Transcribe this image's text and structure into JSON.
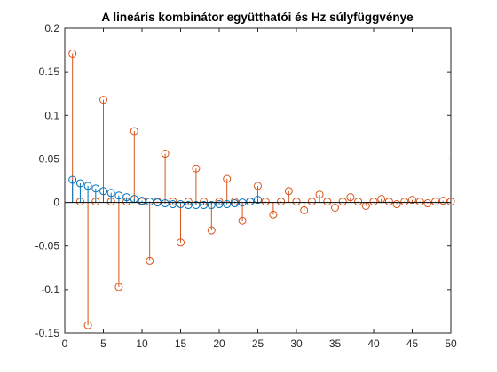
{
  "chart_data": {
    "type": "stem",
    "title": "A lineáris kombinátor együtthatói és Hz súlyfüggvénye",
    "xlabel": "",
    "ylabel": "",
    "xlim": [
      0,
      50
    ],
    "ylim": [
      -0.15,
      0.2
    ],
    "xticks": [
      0,
      5,
      10,
      15,
      20,
      25,
      30,
      35,
      40,
      45,
      50
    ],
    "yticks": [
      -0.15,
      -0.1,
      -0.05,
      0,
      0.05,
      0.1,
      0.15,
      0.2
    ],
    "xtick_labels": [
      "0",
      "5",
      "10",
      "15",
      "20",
      "25",
      "30",
      "35",
      "40",
      "45",
      "50"
    ],
    "ytick_labels": [
      "-0.15",
      "-0.1",
      "-0.05",
      "0",
      "0.05",
      "0.1",
      "0.15",
      "0.2"
    ],
    "series": [
      {
        "color": "#0072BD",
        "x": [
          1,
          2,
          3,
          4,
          5,
          6,
          7,
          8,
          9,
          10,
          11,
          12,
          13,
          14,
          15,
          16,
          17,
          18,
          19,
          20,
          21,
          22,
          23,
          24,
          25
        ],
        "values": [
          0.026,
          0.022,
          0.019,
          0.016,
          0.013,
          0.011,
          0.008,
          0.006,
          0.004,
          0.002,
          0.001,
          0.0,
          -0.001,
          -0.002,
          -0.002,
          -0.003,
          -0.003,
          -0.003,
          -0.003,
          -0.002,
          -0.002,
          -0.001,
          0.0,
          0.001,
          0.003
        ]
      },
      {
        "color": "#D95319",
        "x": [
          1,
          2,
          3,
          4,
          5,
          6,
          7,
          8,
          9,
          10,
          11,
          12,
          13,
          14,
          15,
          16,
          17,
          18,
          19,
          20,
          21,
          22,
          23,
          24,
          25,
          26,
          27,
          28,
          29,
          30,
          31,
          32,
          33,
          34,
          35,
          36,
          37,
          38,
          39,
          40,
          41,
          42,
          43,
          44,
          45,
          46,
          47,
          48,
          49,
          50
        ],
        "values": [
          0.171,
          0.001,
          -0.141,
          0.001,
          0.118,
          0.001,
          -0.097,
          0.001,
          0.082,
          0.001,
          -0.067,
          0.001,
          0.056,
          0.001,
          -0.046,
          0.001,
          0.039,
          0.001,
          -0.032,
          0.001,
          0.027,
          0.001,
          -0.021,
          0.001,
          0.019,
          0.001,
          -0.014,
          0.001,
          0.013,
          0.001,
          -0.009,
          0.001,
          0.009,
          0.001,
          -0.006,
          0.001,
          0.006,
          0.001,
          -0.004,
          0.001,
          0.004,
          0.001,
          -0.002,
          0.001,
          0.003,
          0.001,
          -0.001,
          0.001,
          0.002,
          0.001
        ]
      }
    ]
  }
}
